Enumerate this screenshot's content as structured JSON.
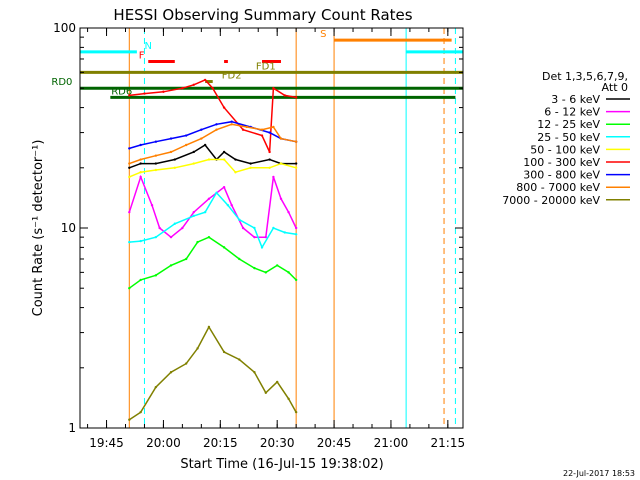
{
  "chart_data": {
    "type": "line",
    "title": "HESSI Observing Summary Count Rates",
    "xlabel": "Start Time (16-Jul-15 19:38:02)",
    "ylabel": "Count Rate (s⁻¹ detector⁻¹)",
    "y_scale": "log",
    "ylim": [
      1,
      100
    ],
    "xlim_minutes_after_1938": [
      0,
      101
    ],
    "x_ticks": [
      {
        "label": "19:45",
        "minute": 7
      },
      {
        "label": "20:00",
        "minute": 22
      },
      {
        "label": "20:15",
        "minute": 37
      },
      {
        "label": "20:30",
        "minute": 52
      },
      {
        "label": "20:45",
        "minute": 67
      },
      {
        "label": "21:00",
        "minute": 82
      },
      {
        "label": "21:15",
        "minute": 97
      }
    ],
    "y_ticks": [
      {
        "label": "1",
        "value": 1
      },
      {
        "label": "10",
        "value": 10
      },
      {
        "label": "100",
        "value": 100
      }
    ],
    "legend": {
      "header": [
        "Det 1,3,5,6,7,9,",
        "Att 0"
      ],
      "placement": "right"
    },
    "series": [
      {
        "name": "3 - 6 keV",
        "color": "#000000",
        "values": [
          [
            13,
            20
          ],
          [
            16,
            21
          ],
          [
            20,
            21
          ],
          [
            25,
            22
          ],
          [
            30,
            24
          ],
          [
            33,
            26
          ],
          [
            36,
            22
          ],
          [
            38,
            24
          ],
          [
            41,
            22
          ],
          [
            45,
            21
          ],
          [
            50,
            22
          ],
          [
            53,
            21
          ],
          [
            57,
            21
          ]
        ]
      },
      {
        "name": "6 - 12 keV",
        "color": "#ff00ff",
        "values": [
          [
            13,
            12
          ],
          [
            16,
            18
          ],
          [
            19,
            13
          ],
          [
            21,
            10
          ],
          [
            24,
            9
          ],
          [
            27,
            10
          ],
          [
            30,
            12
          ],
          [
            34,
            14
          ],
          [
            38,
            16
          ],
          [
            40,
            13
          ],
          [
            43,
            10
          ],
          [
            46,
            9
          ],
          [
            49,
            9
          ],
          [
            51,
            18
          ],
          [
            53,
            14
          ],
          [
            55,
            12
          ],
          [
            57,
            10
          ]
        ]
      },
      {
        "name": "12 - 25 keV",
        "color": "#00ff00",
        "values": [
          [
            13,
            5
          ],
          [
            16,
            5.5
          ],
          [
            20,
            5.8
          ],
          [
            24,
            6.5
          ],
          [
            28,
            7
          ],
          [
            31,
            8.5
          ],
          [
            34,
            9
          ],
          [
            38,
            8
          ],
          [
            42,
            7
          ],
          [
            46,
            6.3
          ],
          [
            49,
            6
          ],
          [
            52,
            6.5
          ],
          [
            55,
            6
          ],
          [
            57,
            5.5
          ]
        ]
      },
      {
        "name": "25 - 50 keV",
        "color": "#00ffff",
        "values": [
          [
            13,
            8.5
          ],
          [
            16,
            8.6
          ],
          [
            20,
            9
          ],
          [
            25,
            10.5
          ],
          [
            30,
            11.5
          ],
          [
            33,
            12
          ],
          [
            36,
            15
          ],
          [
            39,
            13
          ],
          [
            42,
            11
          ],
          [
            46,
            10
          ],
          [
            48,
            8
          ],
          [
            51,
            10
          ],
          [
            54,
            9.5
          ],
          [
            57,
            9.3
          ]
        ]
      },
      {
        "name": "50 - 100 keV",
        "color": "#ffff00",
        "values": [
          [
            13,
            18
          ],
          [
            16,
            19
          ],
          [
            20,
            19.5
          ],
          [
            25,
            20
          ],
          [
            30,
            21
          ],
          [
            34,
            22
          ],
          [
            38,
            22
          ],
          [
            41,
            19
          ],
          [
            45,
            20
          ],
          [
            50,
            20
          ],
          [
            53,
            21
          ],
          [
            57,
            20
          ]
        ]
      },
      {
        "name": "100 - 300 keV",
        "color": "#ff0000",
        "values": [
          [
            13,
            46
          ],
          [
            17,
            47
          ],
          [
            22,
            48
          ],
          [
            27,
            50
          ],
          [
            30,
            52
          ],
          [
            33,
            55
          ],
          [
            35,
            50
          ],
          [
            38,
            40
          ],
          [
            43,
            31
          ],
          [
            48,
            29
          ],
          [
            50,
            24
          ],
          [
            51,
            50
          ],
          [
            54,
            46
          ],
          [
            57,
            45
          ]
        ]
      },
      {
        "name": "300 - 800 keV",
        "color": "#0000ff",
        "values": [
          [
            13,
            25
          ],
          [
            16,
            26
          ],
          [
            20,
            27
          ],
          [
            24,
            28
          ],
          [
            28,
            29
          ],
          [
            32,
            31
          ],
          [
            36,
            33
          ],
          [
            40,
            34
          ],
          [
            45,
            32
          ],
          [
            50,
            30
          ],
          [
            53,
            28
          ],
          [
            57,
            27
          ]
        ]
      },
      {
        "name": "800 - 7000 keV",
        "color": "#ff8000",
        "values": [
          [
            13,
            21
          ],
          [
            16,
            22
          ],
          [
            20,
            23
          ],
          [
            24,
            24
          ],
          [
            28,
            26
          ],
          [
            32,
            28
          ],
          [
            36,
            31
          ],
          [
            40,
            33
          ],
          [
            44,
            32
          ],
          [
            48,
            31
          ],
          [
            51,
            32
          ],
          [
            53,
            28
          ],
          [
            57,
            27
          ]
        ]
      },
      {
        "name": "7000 - 20000 keV",
        "color": "#808000",
        "values": [
          [
            13,
            1.1
          ],
          [
            16,
            1.2
          ],
          [
            20,
            1.6
          ],
          [
            24,
            1.9
          ],
          [
            28,
            2.1
          ],
          [
            31,
            2.5
          ],
          [
            34,
            3.2
          ],
          [
            38,
            2.4
          ],
          [
            42,
            2.2
          ],
          [
            46,
            1.9
          ],
          [
            49,
            1.5
          ],
          [
            52,
            1.7
          ],
          [
            55,
            1.4
          ],
          [
            57,
            1.2
          ]
        ]
      }
    ],
    "flags": [
      {
        "label": "N",
        "color": "#00ffff",
        "y_value": 76,
        "segments": [
          [
            0,
            15
          ],
          [
            86,
            101
          ]
        ],
        "label_minute": 17,
        "label_side": "right"
      },
      {
        "label": "F",
        "color": "#ff0000",
        "y_value": 68,
        "segments": [
          [
            18,
            25
          ],
          [
            38,
            39
          ],
          [
            48,
            53
          ]
        ],
        "label_minute": 17,
        "label_side": "left"
      },
      {
        "label": "S",
        "color": "#ff8000",
        "y_value": 87,
        "segments": [
          [
            67,
            98
          ]
        ],
        "label_minute": 65,
        "label_side": "left"
      },
      {
        "label": "FD1",
        "color": "#808000",
        "y_value": 60,
        "segments": [
          [
            0,
            101
          ]
        ],
        "label_minute": 49,
        "label_side": "center"
      },
      {
        "label": "FD2",
        "color": "#808000",
        "y_value": 54,
        "segments": [
          [
            33,
            35
          ]
        ],
        "label_minute": 40,
        "label_side": "center"
      },
      {
        "label": "RD0",
        "color": "#006400",
        "y_value": 50,
        "segments": [
          [
            0,
            101
          ]
        ],
        "label_minute": -2,
        "label_side": "left"
      },
      {
        "label": "RD6",
        "color": "#006400",
        "y_value": 45,
        "segments": [
          [
            8,
            99
          ]
        ],
        "label_minute": 11,
        "label_side": "center"
      }
    ],
    "vertical_lines": [
      {
        "minute": 13,
        "color": "#ff8000",
        "dashed": false
      },
      {
        "minute": 67,
        "color": "#ff8000",
        "dashed": false
      },
      {
        "minute": 96,
        "color": "#ff8000",
        "dashed": true
      },
      {
        "minute": 0,
        "color": "#00ffff",
        "dashed": false
      },
      {
        "minute": 17,
        "color": "#00ffff",
        "dashed": true
      },
      {
        "minute": 86,
        "color": "#00ffff",
        "dashed": false
      },
      {
        "minute": 99,
        "color": "#00ffff",
        "dashed": true
      },
      {
        "minute": 57,
        "color": "#ff8000",
        "dashed": false
      }
    ]
  },
  "footer_date": "22-Jul-2017 18:53"
}
